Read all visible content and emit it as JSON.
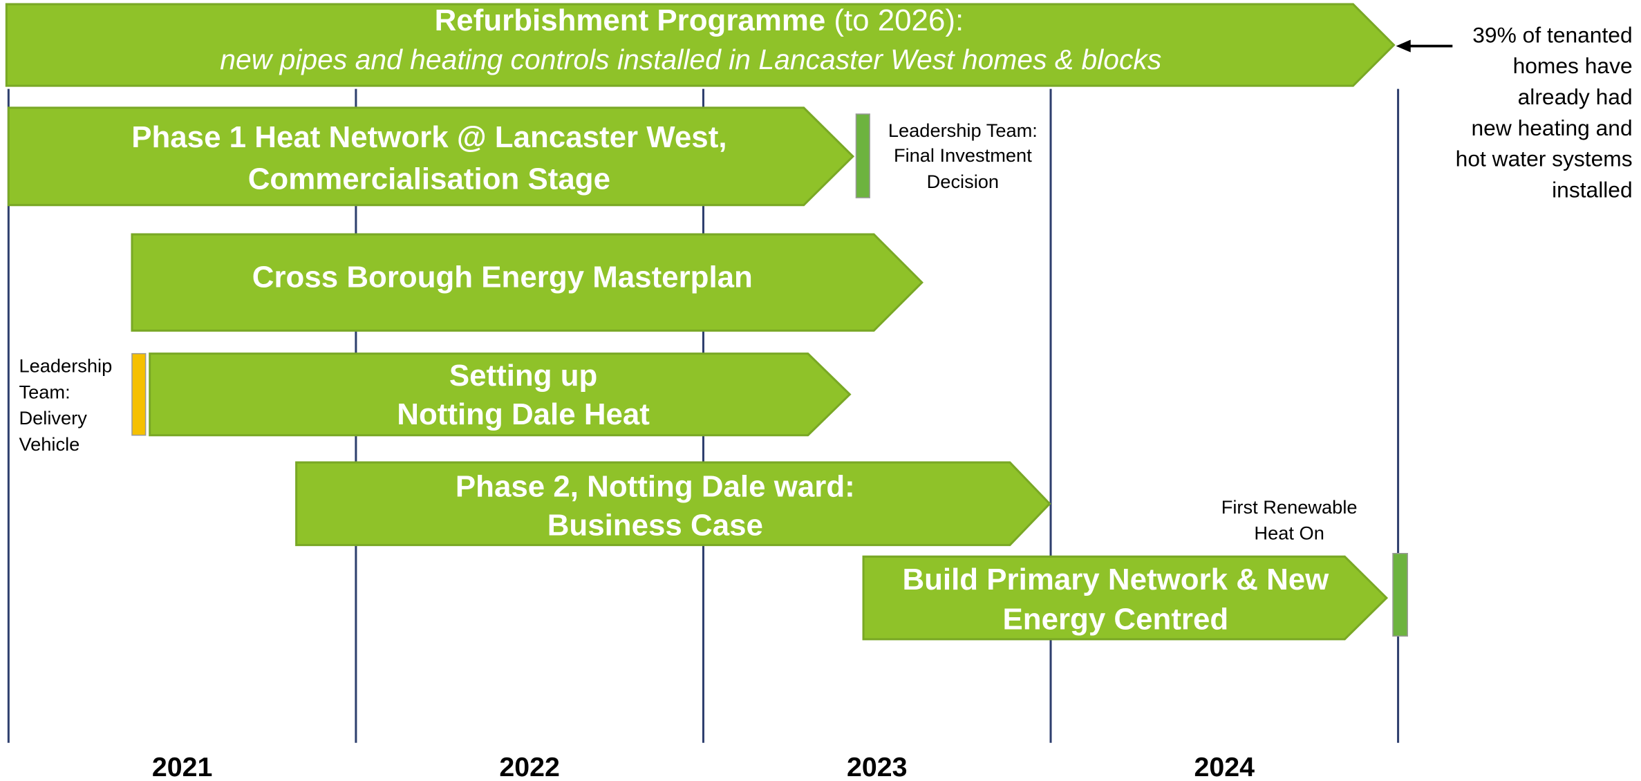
{
  "header": {
    "title": "Refurbishment Programme",
    "title_suffix": "(to 2026):",
    "subtitle": "new pipes and heating controls installed in Lancaster West homes & blocks"
  },
  "note": {
    "lines": [
      "39% of tenanted",
      "homes have",
      "already had",
      "new heating and",
      "hot water systems",
      "installed"
    ]
  },
  "arrows": [
    {
      "lines": [
        "Phase 1 Heat Network @ Lancaster West,",
        "Commercialisation Stage"
      ]
    },
    {
      "lines": [
        "Cross Borough Energy Masterplan"
      ]
    },
    {
      "lines": [
        "Setting up",
        "Notting Dale Heat"
      ]
    },
    {
      "lines": [
        "Phase 2, Notting Dale ward:",
        "Business Case"
      ]
    },
    {
      "lines": [
        "Build Primary Network & New",
        "Energy Centred"
      ]
    }
  ],
  "milestones": [
    {
      "lines": [
        "Leadership Team:",
        "Final Investment",
        "Decision"
      ]
    },
    {
      "lines": [
        "Leadership",
        "Team:",
        "Delivery",
        "Vehicle"
      ]
    },
    {
      "lines": [
        "First Renewable",
        "Heat On"
      ]
    }
  ],
  "years": [
    "2021",
    "2022",
    "2023",
    "2024"
  ]
}
